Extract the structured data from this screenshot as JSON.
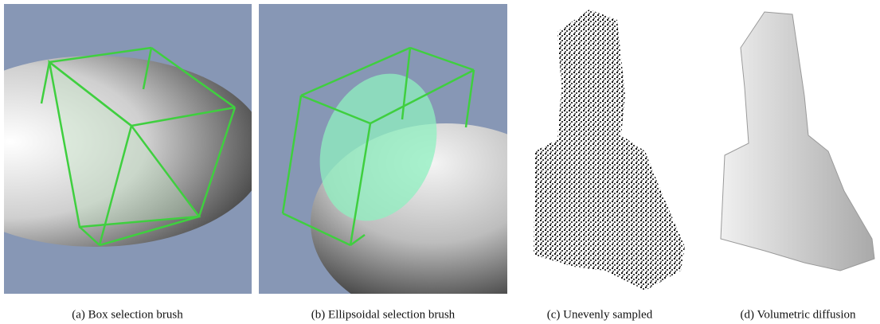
{
  "figure": {
    "panels": [
      {
        "caption": "(a) Box selection brush"
      },
      {
        "caption": "(b) Ellipsoidal selection brush"
      },
      {
        "caption": "(c) Unevenly sampled"
      },
      {
        "caption": "(d) Volumetric diffusion"
      }
    ]
  }
}
